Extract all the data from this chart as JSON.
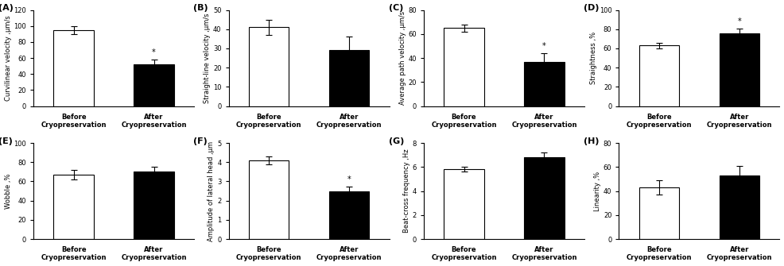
{
  "panels": [
    {
      "label": "(A)",
      "ylabel": "Curvilinear velocity ,μm/s",
      "ylim": [
        0,
        120
      ],
      "yticks": [
        0,
        20,
        40,
        60,
        80,
        100,
        120
      ],
      "before_val": 95,
      "after_val": 52,
      "before_err": 5,
      "after_err": 6,
      "after_sig": true
    },
    {
      "label": "(B)",
      "ylabel": "Straight-line velocity ,μm/s",
      "ylim": [
        0,
        50
      ],
      "yticks": [
        0,
        10,
        20,
        30,
        40,
        50
      ],
      "before_val": 41,
      "after_val": 29,
      "before_err": 4,
      "after_err": 7,
      "after_sig": false
    },
    {
      "label": "(C)",
      "ylabel": "Average path velocity ,μm/s",
      "ylim": [
        0,
        80
      ],
      "yticks": [
        0,
        20,
        40,
        60,
        80
      ],
      "before_val": 65,
      "after_val": 37,
      "before_err": 3,
      "after_err": 7,
      "after_sig": true
    },
    {
      "label": "(D)",
      "ylabel": "Straightness ,%",
      "ylim": [
        0,
        100
      ],
      "yticks": [
        0,
        20,
        40,
        60,
        80,
        100
      ],
      "before_val": 63,
      "after_val": 76,
      "before_err": 3,
      "after_err": 5,
      "after_sig": true
    },
    {
      "label": "(E)",
      "ylabel": "Wobble ,%",
      "ylim": [
        0,
        100
      ],
      "yticks": [
        0,
        20,
        40,
        60,
        80,
        100
      ],
      "before_val": 67,
      "after_val": 70,
      "before_err": 5,
      "after_err": 5,
      "after_sig": false
    },
    {
      "label": "(F)",
      "ylabel": "Amplitude of lateral head ,μm",
      "ylim": [
        0,
        5
      ],
      "yticks": [
        0,
        1,
        2,
        3,
        4,
        5
      ],
      "before_val": 4.1,
      "after_val": 2.5,
      "before_err": 0.2,
      "after_err": 0.25,
      "after_sig": true
    },
    {
      "label": "(G)",
      "ylabel": "Beat-cross frequency ,Hz",
      "ylim": [
        0,
        8
      ],
      "yticks": [
        0,
        2,
        4,
        6,
        8
      ],
      "before_val": 5.8,
      "after_val": 6.8,
      "before_err": 0.2,
      "after_err": 0.4,
      "after_sig": false
    },
    {
      "label": "(H)",
      "ylabel": "Linearity ,%",
      "ylim": [
        0,
        80
      ],
      "yticks": [
        0,
        20,
        40,
        60,
        80
      ],
      "before_val": 43,
      "after_val": 53,
      "before_err": 6,
      "after_err": 8,
      "after_sig": false
    }
  ],
  "before_color": "white",
  "after_color": "black",
  "before_label": "Before\nCryopreservation",
  "after_label": "After\nCryopreservation",
  "bar_edgecolor": "black",
  "bar_width": 0.5,
  "x_positions": [
    0.5,
    1.5
  ],
  "xlim": [
    0,
    2
  ],
  "fontsize_label": 6.0,
  "fontsize_tick": 6.0,
  "fontsize_panel": 8,
  "fontsize_sig": 7
}
